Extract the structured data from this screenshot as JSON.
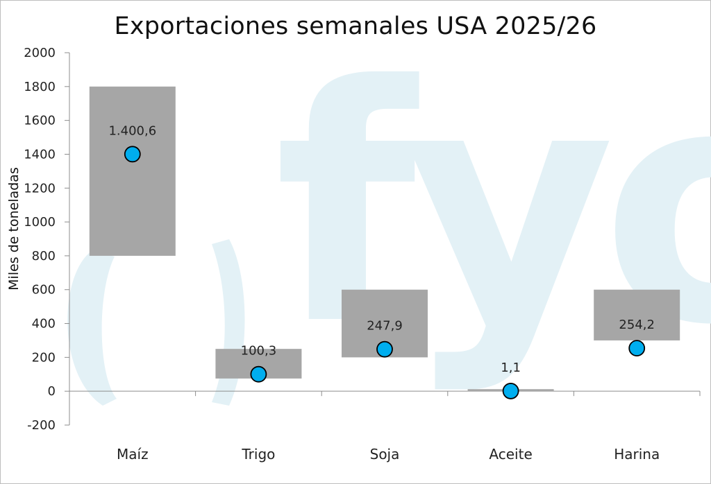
{
  "chart_data": {
    "type": "floating-bar-with-markers",
    "title": "Exportaciones semanales USA 2025/26",
    "ylabel": "Miles de toneladas",
    "xlabel": "",
    "ylim": [
      -200,
      2000
    ],
    "yticks": [
      -200,
      0,
      200,
      400,
      600,
      800,
      1000,
      1200,
      1400,
      1600,
      1800,
      2000
    ],
    "grid": false,
    "categories": [
      "Maíz",
      "Trigo",
      "Soja",
      "Aceite",
      "Harina"
    ],
    "range_series": {
      "low": [
        800,
        75,
        200,
        0,
        300
      ],
      "high": [
        1800,
        250,
        600,
        12,
        600
      ]
    },
    "point_series": {
      "values": [
        1400.6,
        100.3,
        247.9,
        1.1,
        254.2
      ],
      "labels": [
        "1.400,6",
        "100,3",
        "247,9",
        "1,1",
        "254,2"
      ]
    },
    "colors": {
      "range": "#a6a6a6",
      "marker": "#00aeef",
      "marker_stroke": "#000000",
      "axis": "#8c8c8c",
      "watermark": "#e3f1f6"
    },
    "watermark": "fyo"
  }
}
